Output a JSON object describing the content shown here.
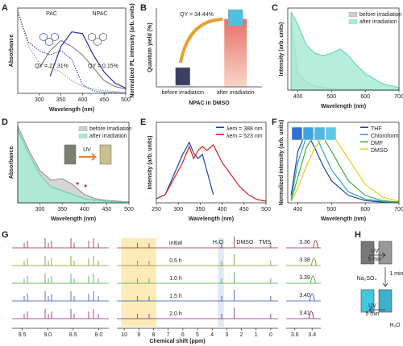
{
  "chart_data": [
    {
      "type": "line",
      "label": "A",
      "xlabel": "Wavelength (nm)",
      "ylabel": "Absorbance",
      "y2label": "Normalized PL intensity (arb. units)",
      "xlim": [
        250,
        500
      ],
      "xticks": [
        300,
        350,
        400,
        450,
        500
      ],
      "ylim": [
        0,
        1
      ],
      "x": [
        250,
        275,
        300,
        325,
        350,
        375,
        400,
        425,
        450,
        475,
        500
      ],
      "series": [
        {
          "color": "#999999",
          "dash": true,
          "values": [
            0.98,
            0.55,
            0.35,
            0.3,
            0.25,
            0.15,
            0.08,
            0.05,
            0.03,
            0.02,
            0.01
          ]
        },
        {
          "color": "#3a4fd0",
          "dash": true,
          "values": [
            0.95,
            0.6,
            0.5,
            0.45,
            0.5,
            0.4,
            0.1,
            0.03,
            0.01,
            0.01,
            0
          ]
        },
        {
          "color": "#888888",
          "values": [
            null,
            null,
            0.3,
            0.5,
            0.62,
            0.55,
            0.45,
            0.3,
            0.15,
            0.08,
            0.05
          ]
        },
        {
          "color": "#1f2fa8",
          "values": [
            null,
            null,
            null,
            0.2,
            0.55,
            0.72,
            0.7,
            0.45,
            0.25,
            0.12,
            0.06
          ]
        }
      ],
      "annotations": {
        "pac": "PAC",
        "npac": "NPAC",
        "qy_pac": "QY = 27.31%",
        "qy_npac": "QY = 0.15%"
      }
    },
    {
      "type": "bar",
      "label": "B",
      "xlabel": "NPAC in DMSO",
      "ylabel": "Quantum yield (%)",
      "categories": [
        "before irradiation",
        "after irradiation"
      ],
      "values": [
        0.15,
        34.44
      ],
      "ylim": [
        0,
        40
      ],
      "colors": [
        "#555566",
        "#e8706a"
      ],
      "annotation": "QY = 34.44%"
    },
    {
      "type": "line",
      "label": "C",
      "xlabel": "Wavelength (nm)",
      "ylabel": "Intensity (arb. units)",
      "xlim": [
        370,
        700
      ],
      "xticks": [
        400,
        500,
        600,
        700
      ],
      "ylim": [
        0,
        1
      ],
      "legend": "upper right",
      "x": [
        380,
        400,
        425,
        450,
        475,
        500,
        525,
        550,
        575,
        600,
        650,
        700
      ],
      "series": [
        {
          "name": "before irradiation",
          "color": "#999999",
          "fill": "#cfcfcf",
          "values": [
            0.9,
            0.2,
            0.1,
            0.05,
            0.03,
            0.02,
            0.02,
            0.01,
            0.01,
            0.01,
            0,
            0
          ]
        },
        {
          "name": "after irradiation",
          "color": "#6fd3b4",
          "fill": "#a8ecd6",
          "values": [
            0.95,
            0.8,
            0.55,
            0.45,
            0.42,
            0.45,
            0.5,
            0.42,
            0.3,
            0.2,
            0.08,
            0.03
          ]
        }
      ]
    },
    {
      "type": "line",
      "label": "D",
      "xlabel": "Wavelength (nm)",
      "ylabel": "Absorbance",
      "xlim": [
        250,
        500
      ],
      "xticks": [
        300,
        350,
        400,
        450,
        500
      ],
      "ylim": [
        0,
        1
      ],
      "legend": "upper right",
      "x": [
        250,
        275,
        300,
        325,
        350,
        375,
        400,
        425,
        450,
        475,
        500
      ],
      "series": [
        {
          "name": "before irradiation",
          "color": "#999999",
          "fill": "#cfcfcf",
          "values": [
            0.95,
            0.65,
            0.4,
            0.28,
            0.3,
            0.22,
            0.1,
            0.05,
            0.03,
            0.02,
            0.01
          ]
        },
        {
          "name": "after irradiation",
          "color": "#6fd3b4",
          "fill": "#a8ecd6",
          "values": [
            0.9,
            0.6,
            0.35,
            0.2,
            0.15,
            0.1,
            0.05,
            0.03,
            0.02,
            0.01,
            0.01
          ]
        }
      ],
      "annotation": "UV"
    },
    {
      "type": "line",
      "label": "E",
      "xlabel": "Wavelength (nm)",
      "ylabel": "Intensity (arb. units)",
      "xlim": [
        250,
        500
      ],
      "xticks": [
        250,
        300,
        350,
        400,
        450,
        500
      ],
      "ylim": [
        0,
        1
      ],
      "legend": "upper right",
      "x": [
        250,
        270,
        290,
        310,
        325,
        335,
        345,
        355,
        365,
        380,
        400,
        420,
        440,
        460,
        480,
        500
      ],
      "series": [
        {
          "name": "λem = 388 nm",
          "color": "#1f3faf",
          "values": [
            0.05,
            0.1,
            0.35,
            0.6,
            0.75,
            0.62,
            0.55,
            0.6,
            0.4,
            0.1,
            null,
            null,
            null,
            null,
            null,
            null
          ]
        },
        {
          "name": "λem = 523 nm",
          "color": "#d62020",
          "values": [
            0.05,
            0.1,
            0.3,
            0.5,
            0.7,
            0.55,
            0.65,
            0.7,
            0.65,
            0.72,
            0.5,
            0.35,
            0.2,
            0.1,
            0.04,
            0.02
          ]
        }
      ]
    },
    {
      "type": "line",
      "label": "F",
      "xlabel": "Wavelength (nm)",
      "ylabel": "Normalized intensity (arb. units)",
      "xlim": [
        370,
        700
      ],
      "xticks": [
        400,
        500,
        600,
        700
      ],
      "ylim": [
        0,
        1.1
      ],
      "legend": "upper right",
      "x": [
        380,
        400,
        425,
        450,
        475,
        500,
        550,
        600,
        650,
        700
      ],
      "series": [
        {
          "name": "THF",
          "color": "#1f3fa8",
          "values": [
            0.1,
            0.7,
            0.98,
            0.75,
            0.5,
            0.3,
            0.1,
            0.03,
            0.01,
            0
          ]
        },
        {
          "name": "Chloroform",
          "color": "#2aa8b0",
          "values": [
            0.05,
            0.55,
            0.9,
            0.95,
            0.7,
            0.45,
            0.15,
            0.05,
            0.02,
            0
          ]
        },
        {
          "name": "DMF",
          "color": "#3cb040",
          "values": [
            0.03,
            0.35,
            0.75,
            0.95,
            0.9,
            0.7,
            0.3,
            0.1,
            0.03,
            0.01
          ]
        },
        {
          "name": "DMSO",
          "color": "#e0d020",
          "values": [
            0.02,
            0.2,
            0.5,
            0.75,
            0.9,
            0.95,
            0.6,
            0.25,
            0.08,
            0.02
          ]
        }
      ]
    }
  ],
  "nmr": {
    "label": "G",
    "xlabel": "Chemical shift (ppm)",
    "rows": [
      "initial",
      "0.5 h",
      "1.0 h",
      "1.5 h",
      "2.0 h"
    ],
    "colors": [
      "#a02030",
      "#8a8a20",
      "#40a040",
      "#3050b0",
      "#802080"
    ],
    "shifts": [
      3.36,
      3.38,
      3.39,
      {
        "value": 3.4,
        "label": "3.40"
      },
      3.41
    ],
    "peaks": {
      "water": "H₂O",
      "dmso": "DMSO",
      "tms": "TMS"
    },
    "left_xlim": [
      9.7,
      7.8
    ],
    "left_xticks": [
      9.5,
      {
        "value": 9,
        "label": "9.0"
      },
      8.5,
      {
        "value": 8,
        "label": "8.0"
      }
    ],
    "mid_xlim": [
      10.5,
      -0.5
    ],
    "mid_xticks": [
      10,
      9,
      8,
      7,
      6,
      5,
      4,
      3,
      2,
      1,
      0
    ],
    "right_xlim": [
      3.7,
      3.3
    ],
    "right_xticks": [
      3.6,
      3.4
    ]
  },
  "scheme": {
    "label": "H",
    "steps": [
      "UV",
      "5 min",
      "1 min",
      "Na₂SO₄",
      "UV",
      "5 min",
      "H₂O"
    ]
  }
}
